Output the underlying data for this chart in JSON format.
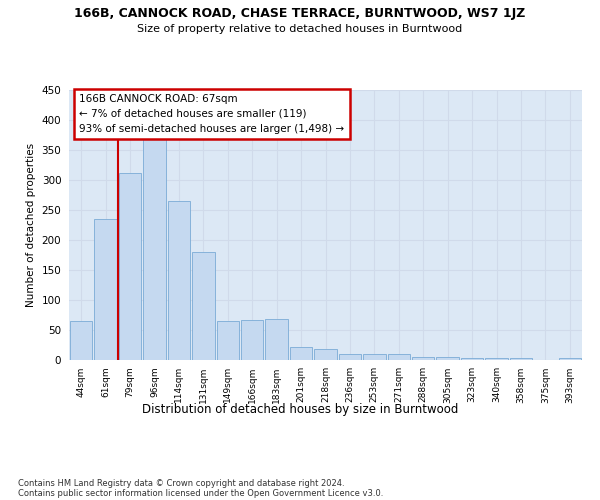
{
  "title": "166B, CANNOCK ROAD, CHASE TERRACE, BURNTWOOD, WS7 1JZ",
  "subtitle": "Size of property relative to detached houses in Burntwood",
  "xlabel": "Distribution of detached houses by size in Burntwood",
  "ylabel": "Number of detached properties",
  "categories": [
    "44sqm",
    "61sqm",
    "79sqm",
    "96sqm",
    "114sqm",
    "131sqm",
    "149sqm",
    "166sqm",
    "183sqm",
    "201sqm",
    "218sqm",
    "236sqm",
    "253sqm",
    "271sqm",
    "288sqm",
    "305sqm",
    "323sqm",
    "340sqm",
    "358sqm",
    "375sqm",
    "393sqm"
  ],
  "values": [
    65,
    235,
    312,
    368,
    265,
    180,
    65,
    67,
    68,
    21,
    18,
    10,
    10,
    10,
    5,
    5,
    4,
    4,
    4,
    0,
    4
  ],
  "bar_color": "#c5d9f0",
  "bar_edge_color": "#7aabd6",
  "grid_color": "#d0daea",
  "bg_color": "#dce8f5",
  "vline_pos": 1.5,
  "vline_color": "#cc0000",
  "annotation_text": "166B CANNOCK ROAD: 67sqm\n← 7% of detached houses are smaller (119)\n93% of semi-detached houses are larger (1,498) →",
  "annotation_box_facecolor": "#ffffff",
  "annotation_box_edgecolor": "#cc0000",
  "ylim_max": 450,
  "yticks": [
    0,
    50,
    100,
    150,
    200,
    250,
    300,
    350,
    400,
    450
  ],
  "footer": "Contains HM Land Registry data © Crown copyright and database right 2024.\nContains public sector information licensed under the Open Government Licence v3.0."
}
